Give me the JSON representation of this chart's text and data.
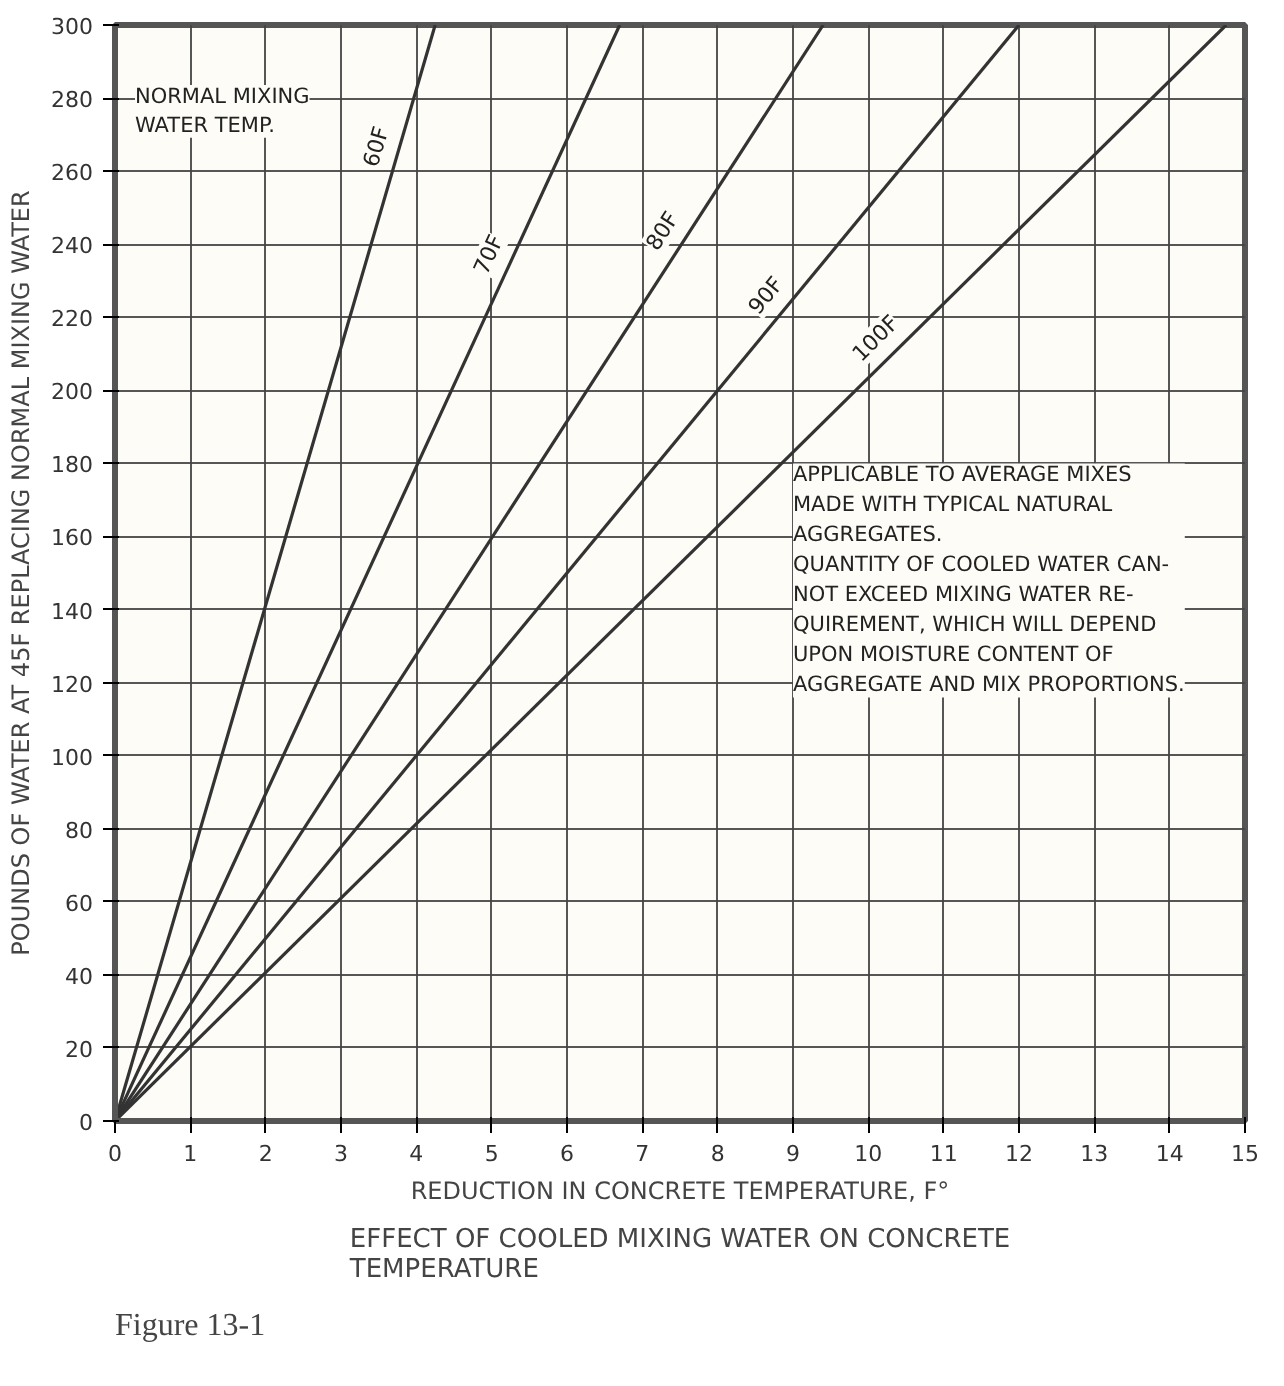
{
  "chart_data": {
    "type": "line",
    "title": "EFFECT OF COOLED MIXING WATER ON CONCRETE\nTEMPERATURE",
    "xlabel": "REDUCTION IN CONCRETE TEMPERATURE, F°",
    "ylabel": "POUNDS OF WATER AT 45F REPLACING NORMAL MIXING WATER",
    "xlim": [
      0,
      15
    ],
    "ylim": [
      0,
      300
    ],
    "xticks": [
      0,
      1,
      2,
      3,
      4,
      5,
      6,
      7,
      8,
      9,
      10,
      11,
      12,
      13,
      14,
      15
    ],
    "yticks": [
      0,
      20,
      40,
      60,
      80,
      100,
      120,
      140,
      160,
      180,
      200,
      220,
      240,
      260,
      280,
      300
    ],
    "grid": true,
    "marker": "none",
    "line_style": "solid",
    "series": [
      {
        "name": "60F",
        "color": "#333333",
        "x": [
          0,
          4.25
        ],
        "values": [
          0,
          300
        ]
      },
      {
        "name": "70F",
        "color": "#333333",
        "x": [
          0,
          6.7
        ],
        "values": [
          0,
          300
        ]
      },
      {
        "name": "80F",
        "color": "#333333",
        "x": [
          0,
          9.4
        ],
        "values": [
          0,
          300
        ]
      },
      {
        "name": "90F",
        "color": "#333333",
        "x": [
          0,
          12.0
        ],
        "values": [
          0,
          300
        ]
      },
      {
        "name": "100F",
        "color": "#333333",
        "x": [
          0,
          14.75
        ],
        "values": [
          0,
          300
        ]
      }
    ],
    "annotations": [
      "NORMAL MIXING\nWATER TEMP.",
      "APPLICABLE TO AVERAGE MIXES\nMADE WITH TYPICAL NATURAL\nAGGREGATES.\nQUANTITY OF COOLED WATER CAN-\nNOT EXCEED MIXING WATER RE-\nQUIREMENT, WHICH WILL DEPEND\nUPON MOISTURE CONTENT OF\nAGGREGATE AND MIX PROPORTIONS.",
      "Figure 13-1"
    ]
  }
}
